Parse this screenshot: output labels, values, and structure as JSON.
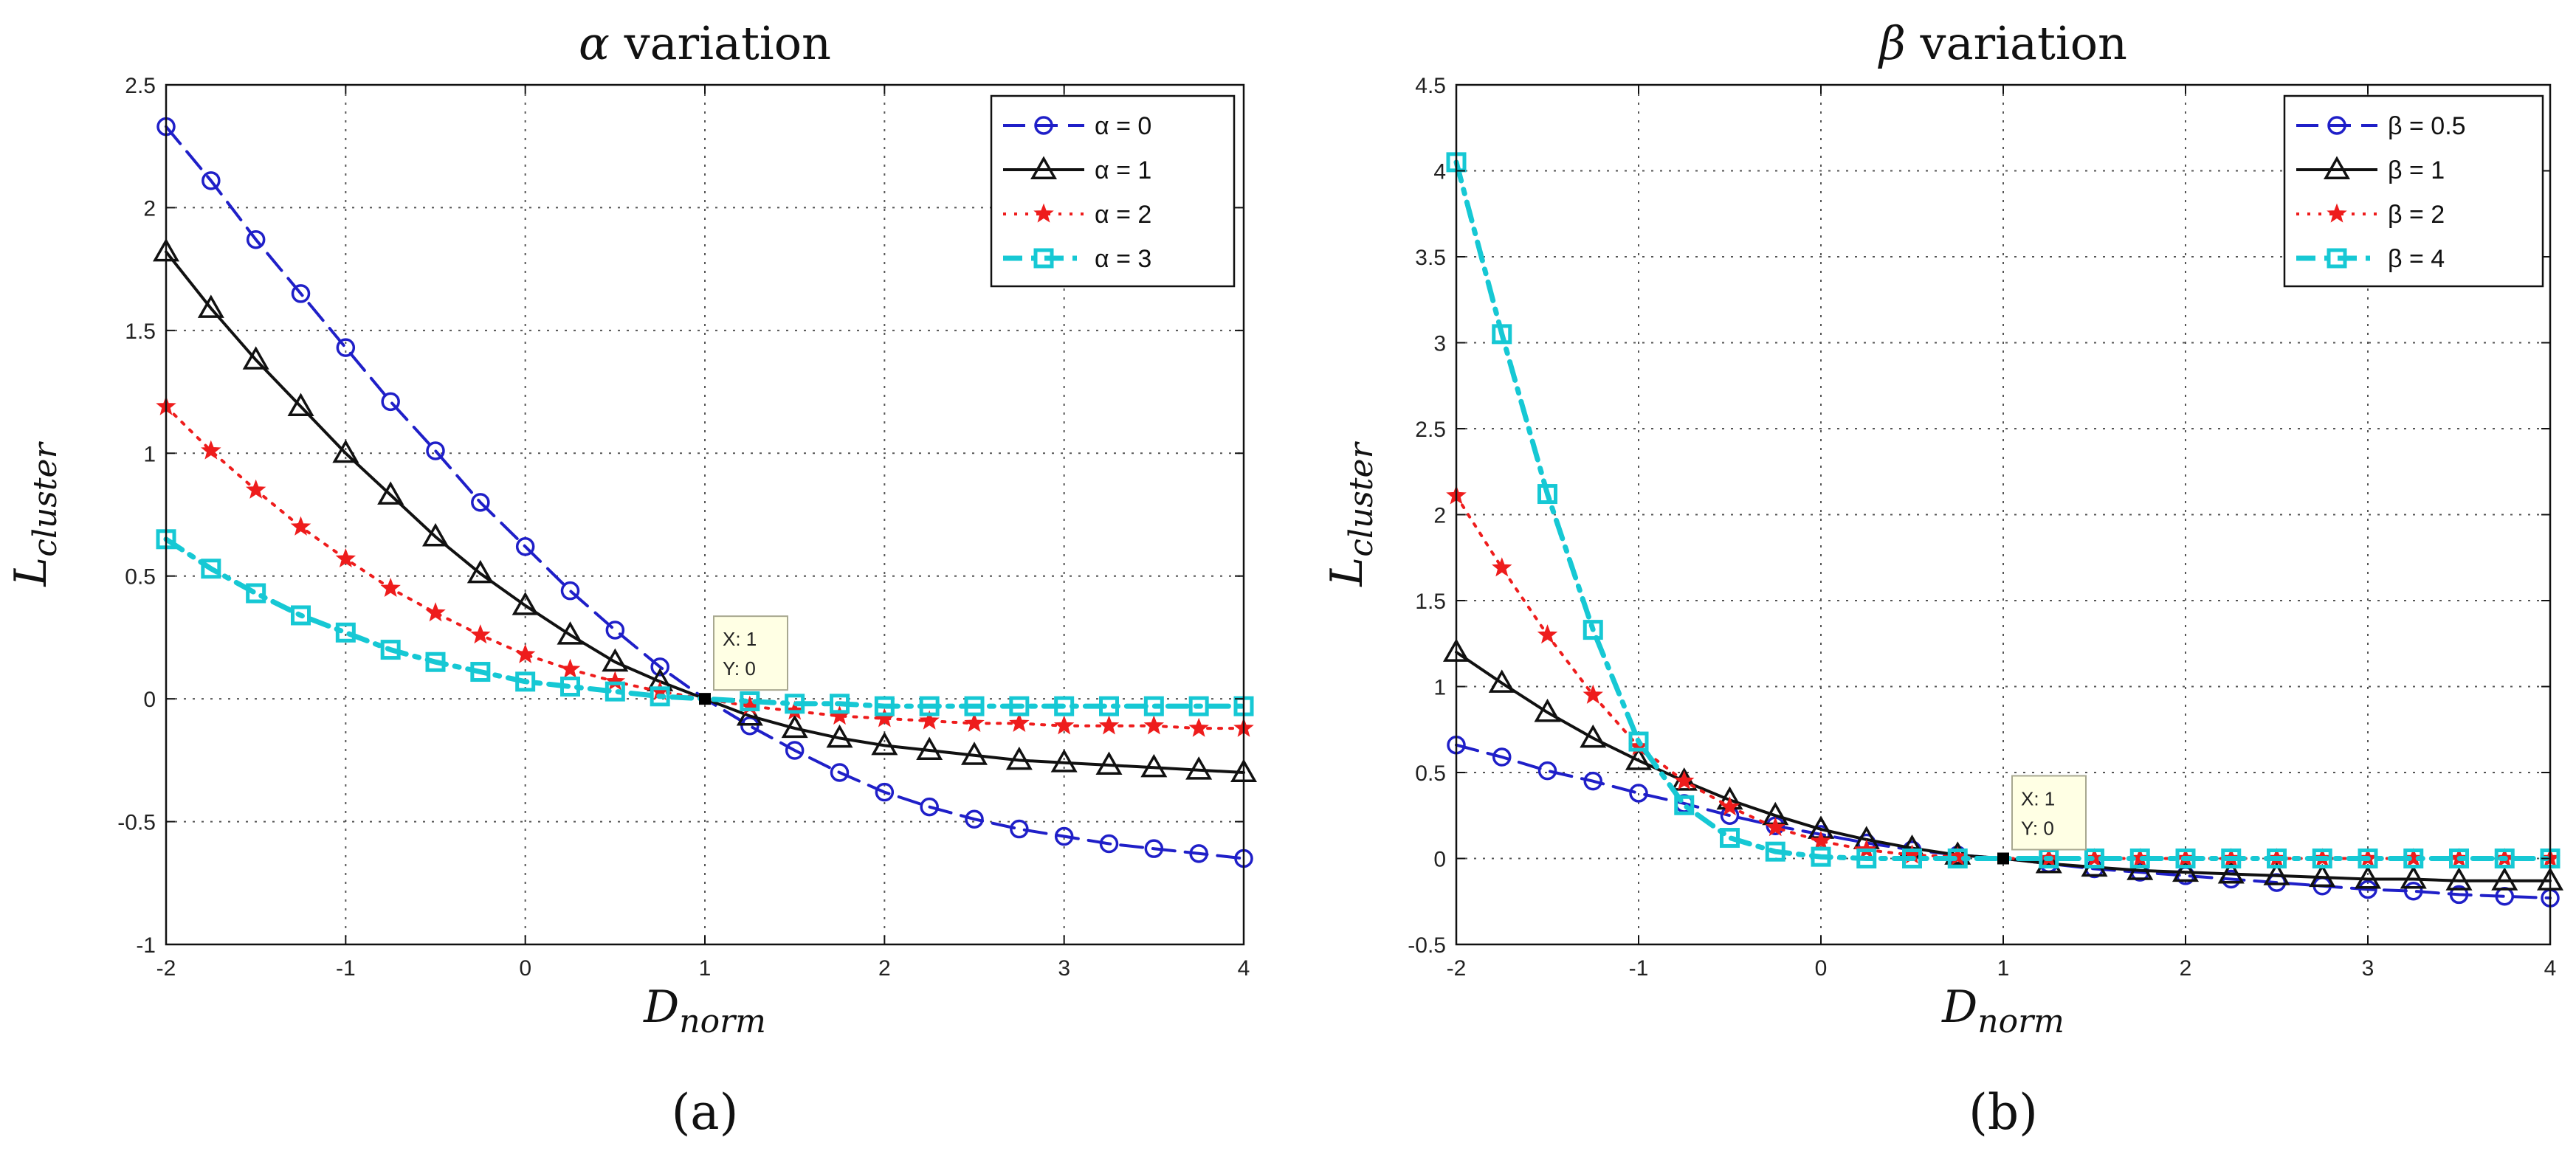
{
  "chart_data": [
    {
      "type": "line",
      "title_symbol": "α",
      "title_text": "variation",
      "xlabel_main": "D",
      "xlabel_sub": "norm",
      "ylabel_main": "L",
      "ylabel_sub": "cluster",
      "xlim": [
        -2,
        4
      ],
      "ylim": [
        -1,
        2.5
      ],
      "xticks": [
        -2,
        -1,
        0,
        1,
        2,
        3,
        4
      ],
      "yticks": [
        -1,
        -0.5,
        0,
        0.5,
        1,
        1.5,
        2,
        2.5
      ],
      "grid": true,
      "legend_position": "top-right",
      "subfigure_label": "(a)",
      "datatip": {
        "x_label": "X: 1",
        "y_label": "Y: 0",
        "x": 1,
        "y": 0
      },
      "x": [
        -2,
        -1.75,
        -1.5,
        -1.25,
        -1,
        -0.75,
        -0.5,
        -0.25,
        0,
        0.25,
        0.5,
        0.75,
        1,
        1.25,
        1.5,
        1.75,
        2,
        2.25,
        2.5,
        2.75,
        3,
        3.25,
        3.5,
        3.75,
        4
      ],
      "series": [
        {
          "name": "α = 0",
          "color": "#1f1fc8",
          "marker": "circle",
          "dash": "long",
          "width": 4,
          "values": [
            2.33,
            2.11,
            1.87,
            1.65,
            1.43,
            1.21,
            1.01,
            0.8,
            0.62,
            0.44,
            0.28,
            0.13,
            0,
            -0.11,
            -0.21,
            -0.3,
            -0.38,
            -0.44,
            -0.49,
            -0.53,
            -0.56,
            -0.59,
            -0.61,
            -0.63,
            -0.65
          ]
        },
        {
          "name": "α = 1",
          "color": "#111111",
          "marker": "triangle",
          "dash": "solid",
          "width": 4,
          "values": [
            1.82,
            1.59,
            1.38,
            1.19,
            1.0,
            0.83,
            0.66,
            0.51,
            0.38,
            0.26,
            0.15,
            0.07,
            0,
            -0.07,
            -0.12,
            -0.16,
            -0.19,
            -0.21,
            -0.23,
            -0.25,
            -0.26,
            -0.27,
            -0.28,
            -0.29,
            -0.3
          ]
        },
        {
          "name": "α = 2",
          "color": "#ee1c1c",
          "marker": "star",
          "dash": "dot",
          "width": 4,
          "values": [
            1.19,
            1.01,
            0.85,
            0.7,
            0.57,
            0.45,
            0.35,
            0.26,
            0.18,
            0.12,
            0.07,
            0.03,
            0,
            -0.03,
            -0.05,
            -0.07,
            -0.08,
            -0.09,
            -0.1,
            -0.1,
            -0.11,
            -0.11,
            -0.11,
            -0.12,
            -0.12
          ]
        },
        {
          "name": "α = 3",
          "color": "#16c8d4",
          "marker": "square",
          "dash": "dashdot",
          "width": 7,
          "values": [
            0.65,
            0.53,
            0.43,
            0.34,
            0.27,
            0.2,
            0.15,
            0.11,
            0.07,
            0.05,
            0.03,
            0.01,
            0,
            -0.01,
            -0.02,
            -0.02,
            -0.03,
            -0.03,
            -0.03,
            -0.03,
            -0.03,
            -0.03,
            -0.03,
            -0.03,
            -0.03
          ]
        }
      ]
    },
    {
      "type": "line",
      "title_symbol": "β",
      "title_text": "variation",
      "xlabel_main": "D",
      "xlabel_sub": "norm",
      "ylabel_main": "L",
      "ylabel_sub": "cluster",
      "xlim": [
        -2,
        4
      ],
      "ylim": [
        -0.5,
        4.5
      ],
      "xticks": [
        -2,
        -1,
        0,
        1,
        2,
        3,
        4
      ],
      "yticks": [
        -0.5,
        0,
        0.5,
        1,
        1.5,
        2,
        2.5,
        3,
        3.5,
        4,
        4.5
      ],
      "grid": true,
      "legend_position": "top-right",
      "subfigure_label": "(b)",
      "datatip": {
        "x_label": "X: 1",
        "y_label": "Y: 0",
        "x": 1,
        "y": 0
      },
      "x": [
        -2,
        -1.75,
        -1.5,
        -1.25,
        -1,
        -0.75,
        -0.5,
        -0.25,
        0,
        0.25,
        0.5,
        0.75,
        1,
        1.25,
        1.5,
        1.75,
        2,
        2.25,
        2.5,
        2.75,
        3,
        3.25,
        3.5,
        3.75,
        4
      ],
      "series": [
        {
          "name": "β = 0.5",
          "color": "#1f1fc8",
          "marker": "circle",
          "dash": "long",
          "width": 4,
          "values": [
            0.66,
            0.59,
            0.51,
            0.45,
            0.38,
            0.32,
            0.25,
            0.19,
            0.14,
            0.09,
            0.05,
            0.02,
            0,
            -0.03,
            -0.06,
            -0.08,
            -0.1,
            -0.12,
            -0.14,
            -0.16,
            -0.18,
            -0.19,
            -0.21,
            -0.22,
            -0.23
          ]
        },
        {
          "name": "β = 1",
          "color": "#111111",
          "marker": "triangle",
          "dash": "solid",
          "width": 4,
          "values": [
            1.2,
            1.02,
            0.85,
            0.7,
            0.57,
            0.45,
            0.34,
            0.25,
            0.17,
            0.11,
            0.06,
            0.02,
            0,
            -0.03,
            -0.05,
            -0.07,
            -0.08,
            -0.09,
            -0.1,
            -0.11,
            -0.12,
            -0.12,
            -0.13,
            -0.13,
            -0.13
          ]
        },
        {
          "name": "β = 2",
          "color": "#ee1c1c",
          "marker": "star",
          "dash": "dot",
          "width": 4,
          "values": [
            2.11,
            1.69,
            1.3,
            0.95,
            0.65,
            0.45,
            0.3,
            0.18,
            0.1,
            0.05,
            0.02,
            0.01,
            0,
            0,
            0,
            0,
            0,
            0,
            0,
            0,
            0,
            0,
            0,
            0,
            0
          ]
        },
        {
          "name": "β = 4",
          "color": "#16c8d4",
          "marker": "square",
          "dash": "dashdot",
          "width": 7,
          "values": [
            4.05,
            3.05,
            2.12,
            1.33,
            0.68,
            0.31,
            0.12,
            0.04,
            0.01,
            0,
            0,
            0,
            0,
            0,
            0,
            0,
            0,
            0,
            0,
            0,
            0,
            0,
            0,
            0,
            0
          ]
        }
      ]
    }
  ]
}
